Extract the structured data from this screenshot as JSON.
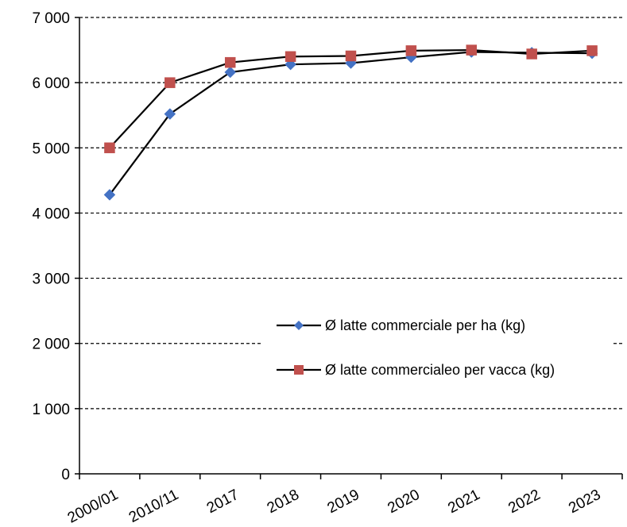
{
  "chart_data": {
    "type": "line",
    "categories": [
      "2000/01",
      "2010/11",
      "2017",
      "2018",
      "2019",
      "2020",
      "2021",
      "2022",
      "2023"
    ],
    "series": [
      {
        "name": "Ø latte commerciale per ha (kg)",
        "values": [
          4280,
          5520,
          6160,
          6280,
          6300,
          6390,
          6470,
          6460,
          6450
        ],
        "color": "#4472C4",
        "marker": "diamond"
      },
      {
        "name": "Ø latte commercialeo per vacca (kg)",
        "values": [
          5000,
          6000,
          6310,
          6400,
          6410,
          6490,
          6500,
          6440,
          6490
        ],
        "color": "#C0504D",
        "marker": "square"
      }
    ],
    "yticks": [
      "0",
      "1 000",
      "2 000",
      "3 000",
      "4 000",
      "5 000",
      "6 000",
      "7 000"
    ],
    "ylim": [
      0,
      7000
    ],
    "ystep": 1000,
    "grid": "horizontal-dashed",
    "legend_position": "center-right",
    "line_color": "#000000"
  }
}
